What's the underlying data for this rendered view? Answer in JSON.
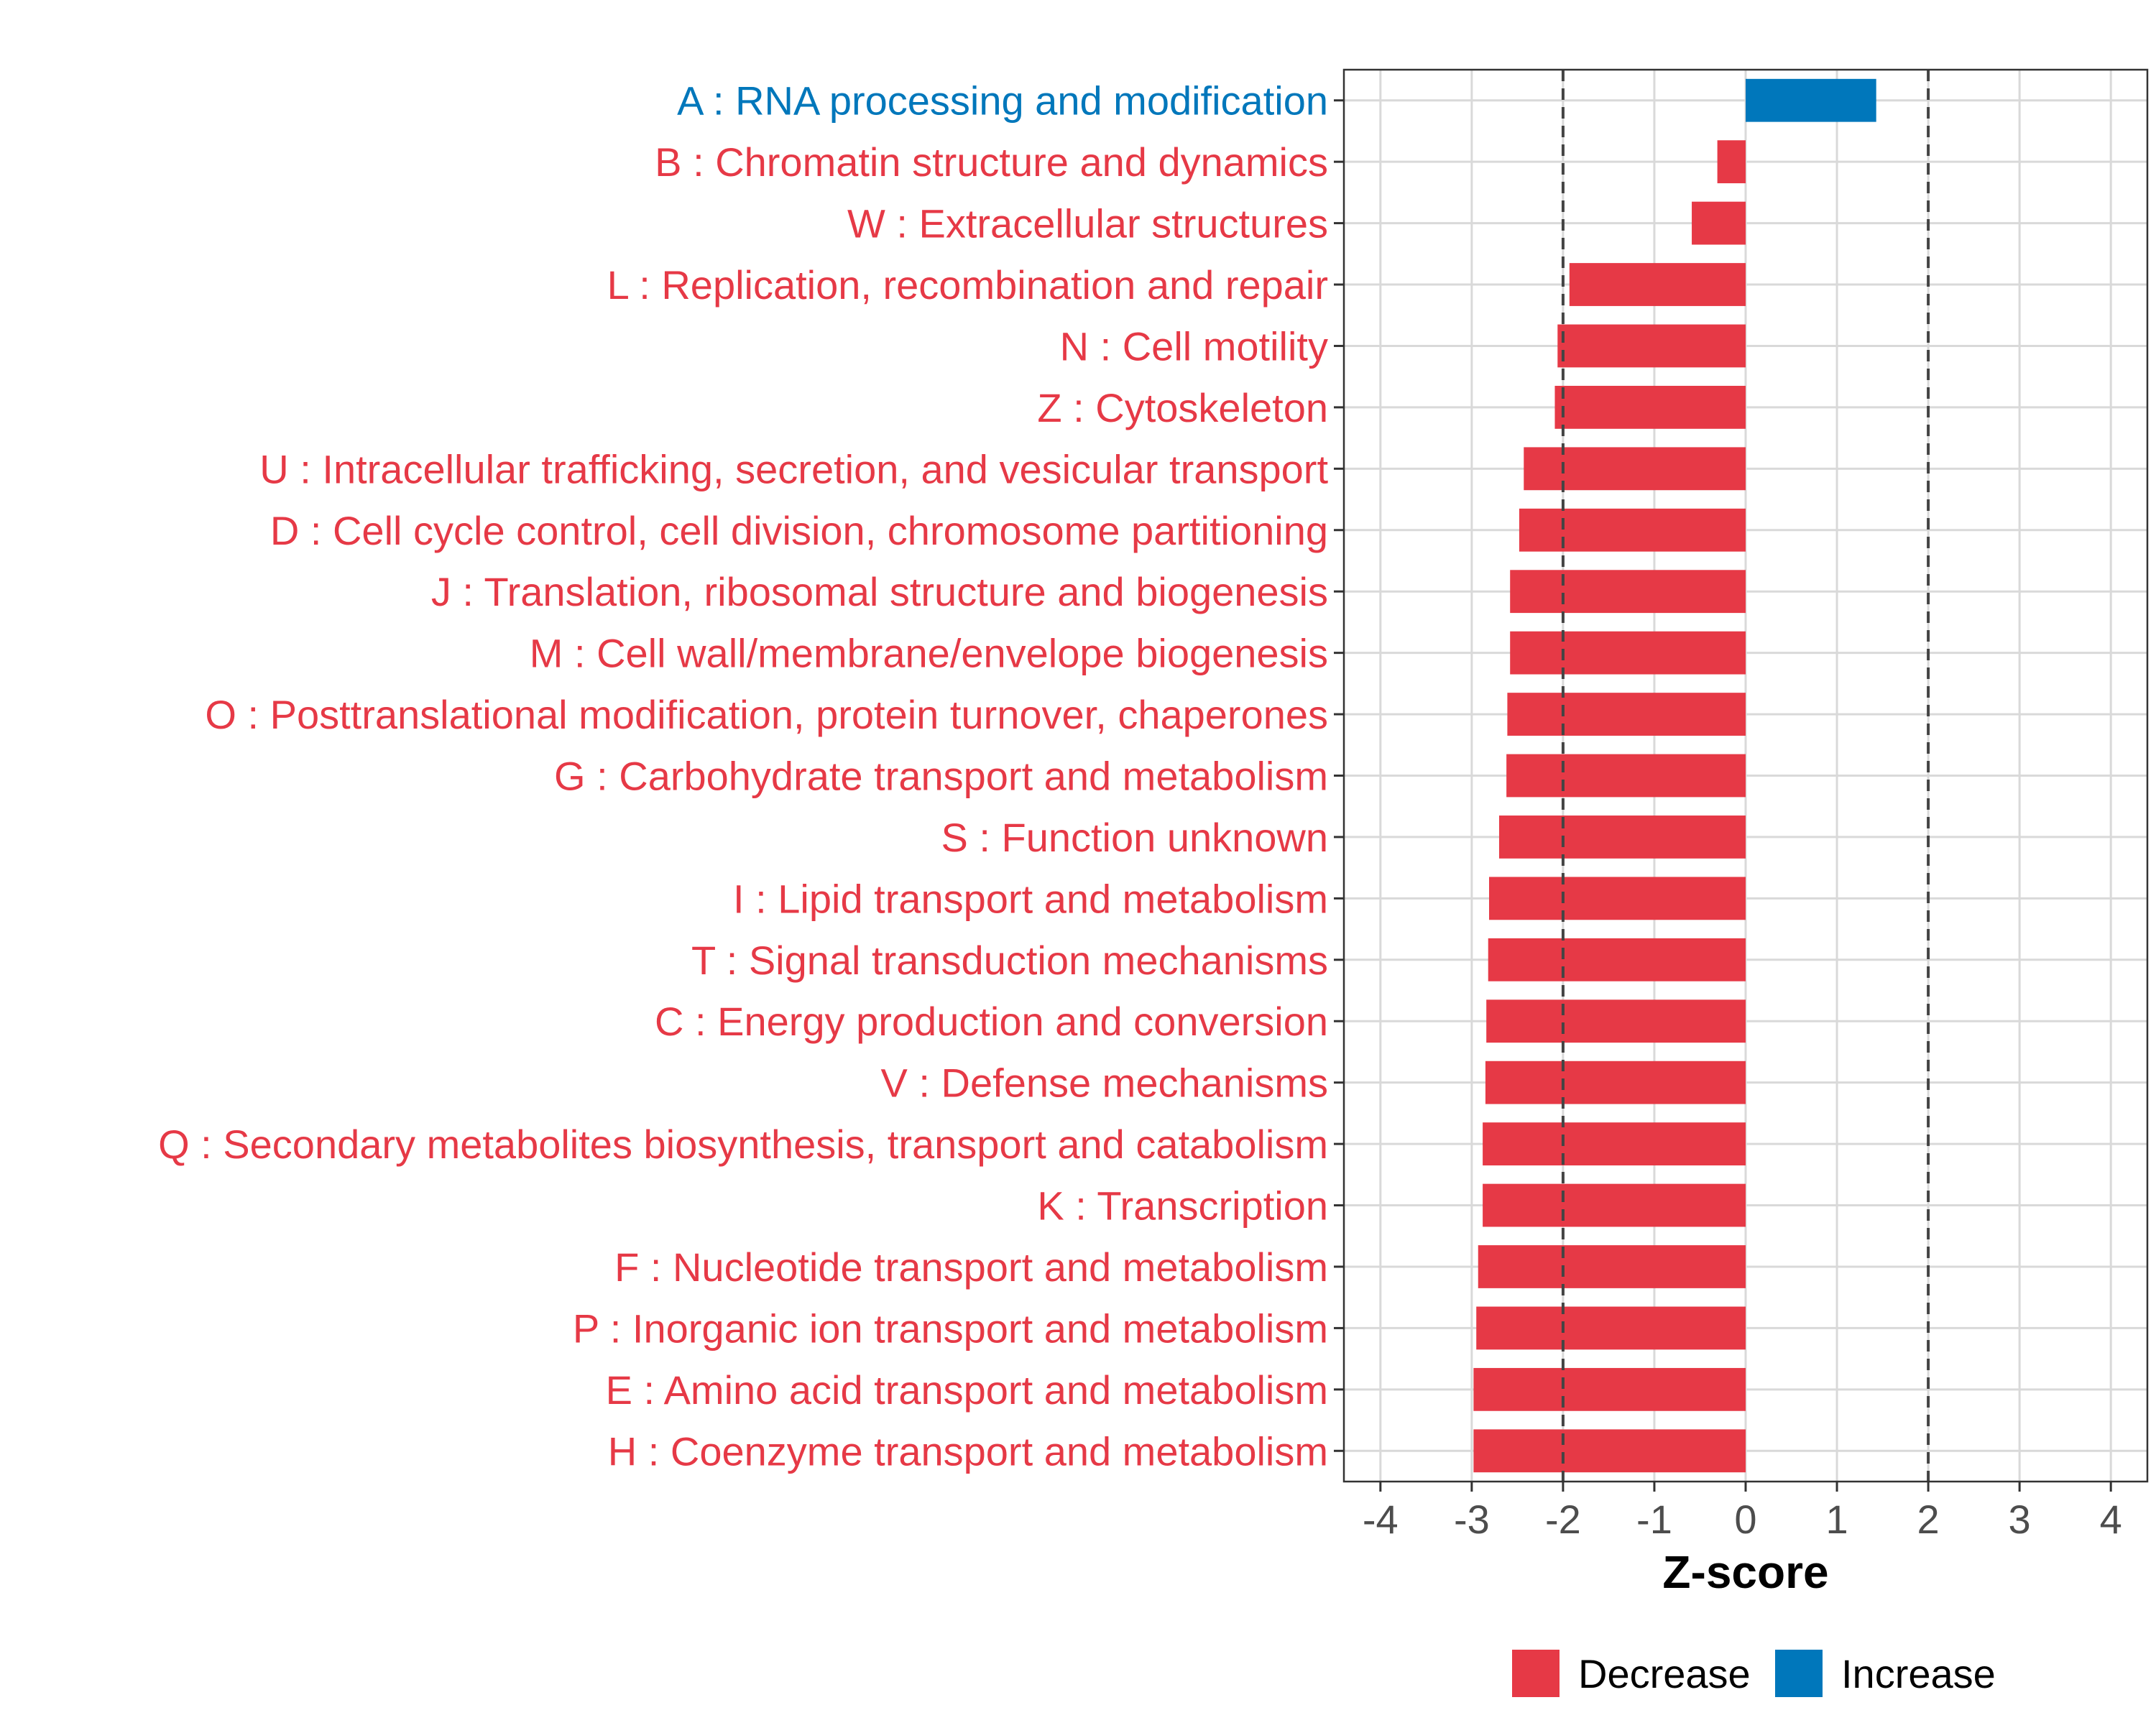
{
  "chart_data": {
    "type": "bar",
    "orientation": "horizontal",
    "xlabel": "Z-score",
    "ylabel": "",
    "xlim": [
      -4.4,
      4.4
    ],
    "x_ticks": [
      -4,
      -3,
      -2,
      -1,
      0,
      1,
      2,
      3,
      4
    ],
    "x_tick_labels": [
      "-4",
      "-3",
      "-2",
      "-1",
      "0",
      "1",
      "2",
      "3",
      "4"
    ],
    "threshold_lines": [
      -2,
      2
    ],
    "grid": true,
    "colors": {
      "Decrease": "#E63946",
      "Increase": "#0077BB"
    },
    "categories": [
      "A : RNA processing and modification",
      "B : Chromatin structure and dynamics",
      "W : Extracellular structures",
      "L : Replication, recombination and repair",
      "N : Cell motility",
      "Z : Cytoskeleton",
      "U : Intracellular trafficking, secretion, and vesicular transport",
      "D : Cell cycle control, cell division, chromosome partitioning",
      "J : Translation, ribosomal structure and biogenesis",
      "M : Cell wall/membrane/envelope biogenesis",
      "O : Posttranslational modification, protein turnover, chaperones",
      "G : Carbohydrate transport and metabolism",
      "S : Function unknown",
      "I : Lipid transport and metabolism",
      "T : Signal transduction mechanisms",
      "C : Energy production and conversion",
      "V : Defense mechanisms",
      "Q : Secondary metabolites biosynthesis, transport and catabolism",
      "K : Transcription",
      "F : Nucleotide transport and metabolism",
      "P : Inorganic ion transport and metabolism",
      "E : Amino acid transport and metabolism",
      "H : Coenzyme transport and metabolism"
    ],
    "values": [
      1.43,
      -0.31,
      -0.59,
      -1.93,
      -2.06,
      -2.09,
      -2.43,
      -2.48,
      -2.58,
      -2.58,
      -2.61,
      -2.62,
      -2.7,
      -2.81,
      -2.82,
      -2.84,
      -2.85,
      -2.88,
      -2.88,
      -2.93,
      -2.95,
      -2.98,
      -2.98
    ],
    "groups": [
      "Increase",
      "Decrease",
      "Decrease",
      "Decrease",
      "Decrease",
      "Decrease",
      "Decrease",
      "Decrease",
      "Decrease",
      "Decrease",
      "Decrease",
      "Decrease",
      "Decrease",
      "Decrease",
      "Decrease",
      "Decrease",
      "Decrease",
      "Decrease",
      "Decrease",
      "Decrease",
      "Decrease",
      "Decrease",
      "Decrease"
    ],
    "legend": {
      "position": "bottom",
      "entries": [
        "Decrease",
        "Increase"
      ]
    }
  }
}
